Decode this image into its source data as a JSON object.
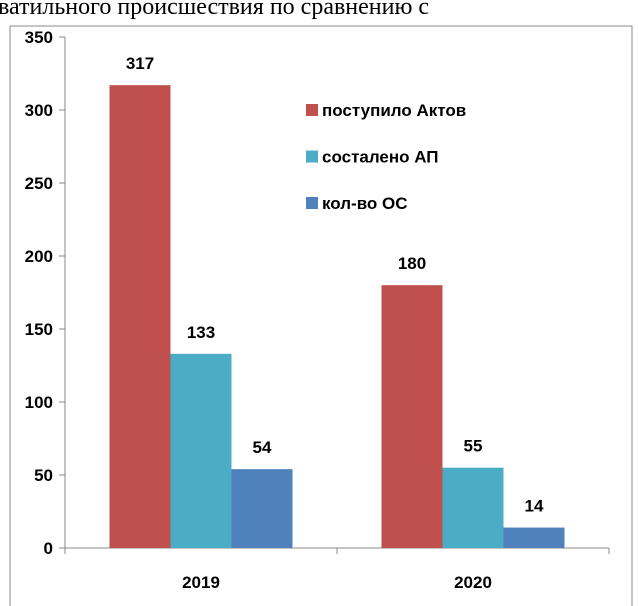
{
  "chart_data": {
    "type": "bar",
    "title": "ватильного происшествия по сравнению с",
    "categories": [
      "2019",
      "2020"
    ],
    "series": [
      {
        "name": "поступило Актов",
        "color": "#c0504d",
        "values": [
          317,
          180
        ]
      },
      {
        "name": "состалено АП",
        "color": "#4bacc6",
        "values": [
          133,
          55
        ]
      },
      {
        "name": "кол-во ОС",
        "color": "#4f81bd",
        "values": [
          54,
          14
        ]
      }
    ],
    "ylim": [
      0,
      350
    ],
    "yticks": [
      0,
      50,
      100,
      150,
      200,
      250,
      300,
      350
    ],
    "legend": "upper right",
    "grid": false
  }
}
